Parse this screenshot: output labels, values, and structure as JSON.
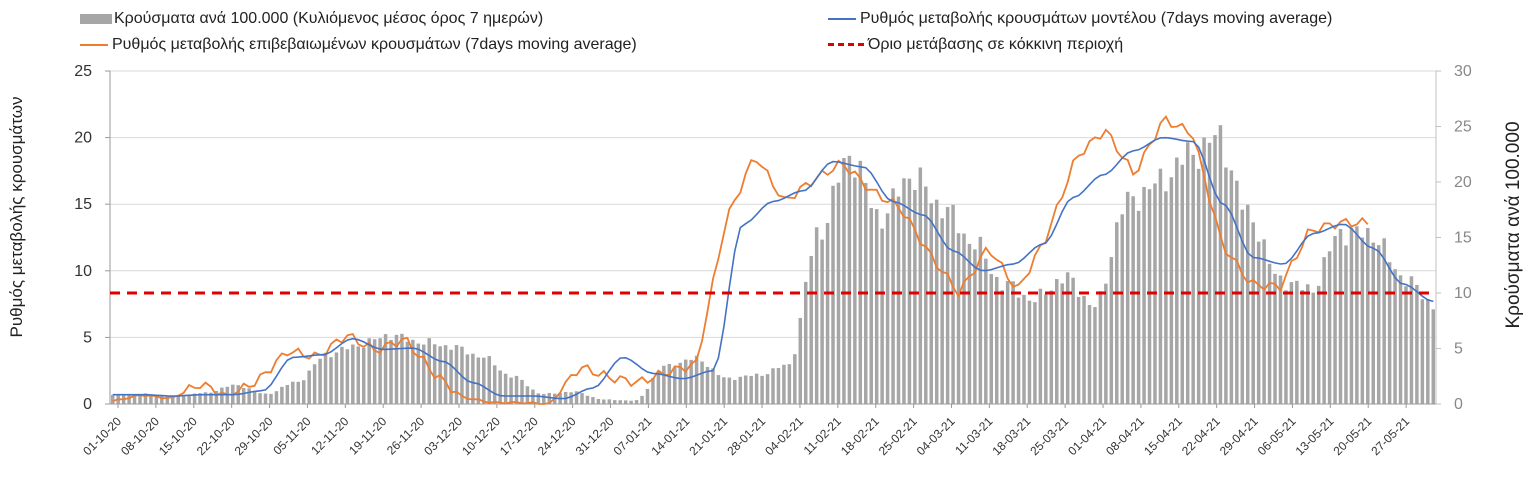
{
  "chart_data": {
    "type": "bar+line",
    "title": "",
    "legend": [
      {
        "key": "bars",
        "label": "Κρούσματα ανά 100.000 (Κυλιόμενος μέσος όρος 7 ημερών)",
        "color": "#a6a6a6"
      },
      {
        "key": "model",
        "label": "Ρυθμός μεταβολής κρουσμάτων μοντέλου (7days moving average)",
        "color": "#4472c4"
      },
      {
        "key": "confirmed",
        "label": "Ρυθμός μεταβολής επιβεβαιωμένων κρουσμάτων (7days moving average)",
        "color": "#ed7d31"
      },
      {
        "key": "threshold",
        "label": "Όριο μετάβασης σε κόκκινη περιοχή",
        "color": "#e00000"
      }
    ],
    "ylabel_left": "Ρυθμός μεταβολής κρουσμάτων",
    "ylabel_right": "Κρούσματα ανά 100.000",
    "ylim_left": [
      0,
      25
    ],
    "yticks_left": [
      "0",
      "5",
      "10",
      "15",
      "20",
      "25"
    ],
    "ylim_right": [
      0,
      30
    ],
    "yticks_right": [
      "0",
      "5",
      "10",
      "15",
      "20",
      "25",
      "30"
    ],
    "x_ticks": [
      "01-10-20",
      "08-10-20",
      "15-10-20",
      "22-10-20",
      "29-10-20",
      "05-11-20",
      "12-11-20",
      "19-11-20",
      "26-11-20",
      "03-12-20",
      "10-12-20",
      "17-12-20",
      "24-12-20",
      "31-12-20",
      "07-01-21",
      "14-01-21",
      "21-01-21",
      "28-01-21",
      "04-02-21",
      "11-02-21",
      "18-02-21",
      "25-02-21",
      "04-03-21",
      "11-03-21",
      "18-03-21",
      "25-03-21",
      "01-04-21",
      "08-04-21",
      "15-04-21",
      "22-04-21",
      "29-04-21",
      "06-05-21",
      "13-05-21",
      "20-05-21",
      "27-05-21"
    ],
    "days_total": 243,
    "threshold_value_right": 10,
    "bars_weekly_right": [
      0.8,
      0.9,
      0.7,
      1.0,
      1.7,
      0.9,
      2.0,
      4.5,
      5.3,
      6.2,
      5.6,
      5.2,
      4.3,
      2.5,
      0.9,
      1.1,
      0.4,
      0.3,
      3.4,
      4.1,
      2.3,
      2.6,
      3.5,
      15.5,
      22.4,
      16.8,
      20.6,
      17.8,
      14.6,
      10.8,
      9.4,
      11.4,
      8.8,
      18.1,
      19.8,
      22.3,
      24.0,
      17.0,
      11.2,
      10.3,
      15.5,
      15.3,
      11.5,
      9.0
    ],
    "model_weekly_left": [
      0.7,
      0.7,
      0.6,
      0.7,
      0.7,
      1.0,
      3.5,
      3.7,
      4.9,
      4.1,
      4.2,
      3.2,
      1.6,
      0.6,
      0.6,
      0.4,
      1.2,
      3.5,
      2.3,
      1.9,
      2.5,
      13.5,
      15.2,
      16.0,
      18.2,
      17.8,
      15.2,
      14.2,
      11.5,
      10.0,
      10.5,
      12.0,
      15.5,
      17.2,
      19.0,
      20.0,
      19.7,
      15.0,
      11.0,
      10.5,
      12.8,
      13.5,
      11.7,
      9.0,
      7.7
    ],
    "confirmed_weekly_left": [
      0.2,
      0.7,
      0.4,
      1.5,
      0.6,
      1.8,
      4.0,
      3.5,
      5.2,
      4.0,
      4.9,
      2.3,
      0.5,
      0.1,
      0.1,
      0.0,
      2.8,
      2.0,
      1.6,
      2.4,
      3.0,
      13.7,
      18.7,
      15.2,
      16.8,
      18.1,
      16.0,
      14.7,
      11.2,
      8.3,
      11.8,
      8.5,
      12.6,
      18.5,
      20.6,
      17.2,
      21.4,
      20.3,
      12.0,
      9.0,
      8.8,
      13.0,
      13.6,
      13.6
    ]
  }
}
